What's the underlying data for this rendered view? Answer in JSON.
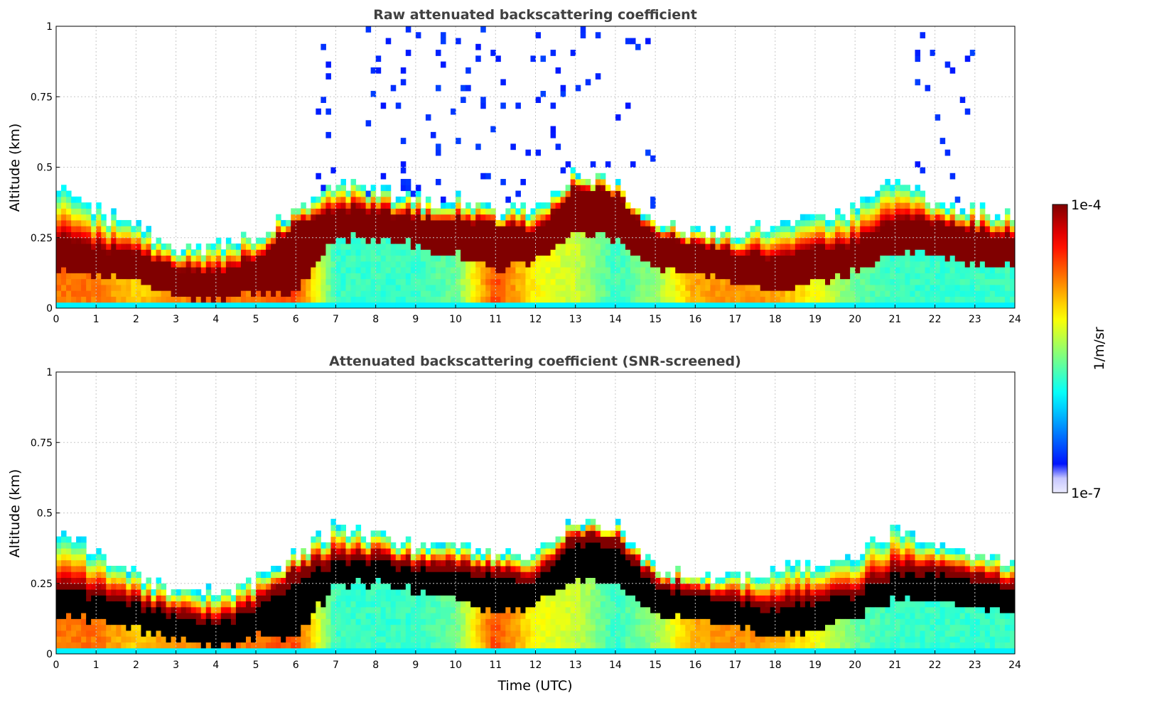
{
  "chart_data": [
    {
      "type": "heatmap",
      "title": "Raw attenuated backscattering coefficient",
      "xlabel": "",
      "ylabel": "Altitude (km)",
      "xlim": [
        0,
        24
      ],
      "ylim": [
        0,
        1
      ],
      "xticks": [
        "0",
        "1",
        "2",
        "3",
        "4",
        "5",
        "6",
        "7",
        "8",
        "9",
        "10",
        "11",
        "12",
        "13",
        "14",
        "15",
        "16",
        "17",
        "18",
        "19",
        "20",
        "21",
        "22",
        "23",
        "24"
      ],
      "yticks": [
        "0",
        "0.25",
        "0.5",
        "0.75",
        "1"
      ],
      "grid": true,
      "screened": false
    },
    {
      "type": "heatmap",
      "title": "Attenuated backscattering coefficient (SNR-screened)",
      "xlabel": "Time (UTC)",
      "ylabel": "Altitude (km)",
      "xlim": [
        0,
        24
      ],
      "ylim": [
        0,
        1
      ],
      "xticks": [
        "0",
        "1",
        "2",
        "3",
        "4",
        "5",
        "6",
        "7",
        "8",
        "9",
        "10",
        "11",
        "12",
        "13",
        "14",
        "15",
        "16",
        "17",
        "18",
        "19",
        "20",
        "21",
        "22",
        "23",
        "24"
      ],
      "yticks": [
        "0",
        "0.25",
        "0.5",
        "0.75",
        "1"
      ],
      "grid": true,
      "screened": true
    }
  ],
  "profile": {
    "hours": [
      0,
      1,
      2,
      3,
      4,
      5,
      6,
      7,
      8,
      9,
      10,
      11,
      12,
      13,
      14,
      15,
      16,
      17,
      18,
      19,
      20,
      21,
      22,
      23,
      24
    ],
    "layer_top_km": [
      0.45,
      0.35,
      0.28,
      0.22,
      0.22,
      0.26,
      0.35,
      0.45,
      0.42,
      0.38,
      0.38,
      0.35,
      0.35,
      0.48,
      0.45,
      0.3,
      0.28,
      0.27,
      0.3,
      0.32,
      0.35,
      0.45,
      0.38,
      0.35,
      0.33
    ],
    "core_center_km": [
      0.2,
      0.17,
      0.14,
      0.1,
      0.07,
      0.12,
      0.18,
      0.3,
      0.3,
      0.27,
      0.25,
      0.22,
      0.22,
      0.35,
      0.33,
      0.2,
      0.18,
      0.15,
      0.12,
      0.15,
      0.18,
      0.25,
      0.25,
      0.22,
      0.2
    ],
    "core_halfwidth_km": [
      0.06,
      0.05,
      0.05,
      0.05,
      0.05,
      0.06,
      0.12,
      0.05,
      0.05,
      0.05,
      0.06,
      0.08,
      0.05,
      0.08,
      0.08,
      0.06,
      0.05,
      0.05,
      0.06,
      0.06,
      0.05,
      0.06,
      0.06,
      0.06,
      0.05
    ],
    "near_ground_level": [
      0.75,
      0.75,
      0.65,
      0.72,
      0.75,
      0.75,
      0.8,
      0.4,
      0.4,
      0.4,
      0.45,
      0.8,
      0.6,
      0.55,
      0.4,
      0.5,
      0.7,
      0.72,
      0.7,
      0.6,
      0.45,
      0.4,
      0.4,
      0.4,
      0.4
    ]
  },
  "colorbar": {
    "max_label": "1e-4",
    "min_label": "1e-7",
    "label": "1/m/sr",
    "scale": "log",
    "range": [
      1e-07,
      0.0001
    ]
  }
}
